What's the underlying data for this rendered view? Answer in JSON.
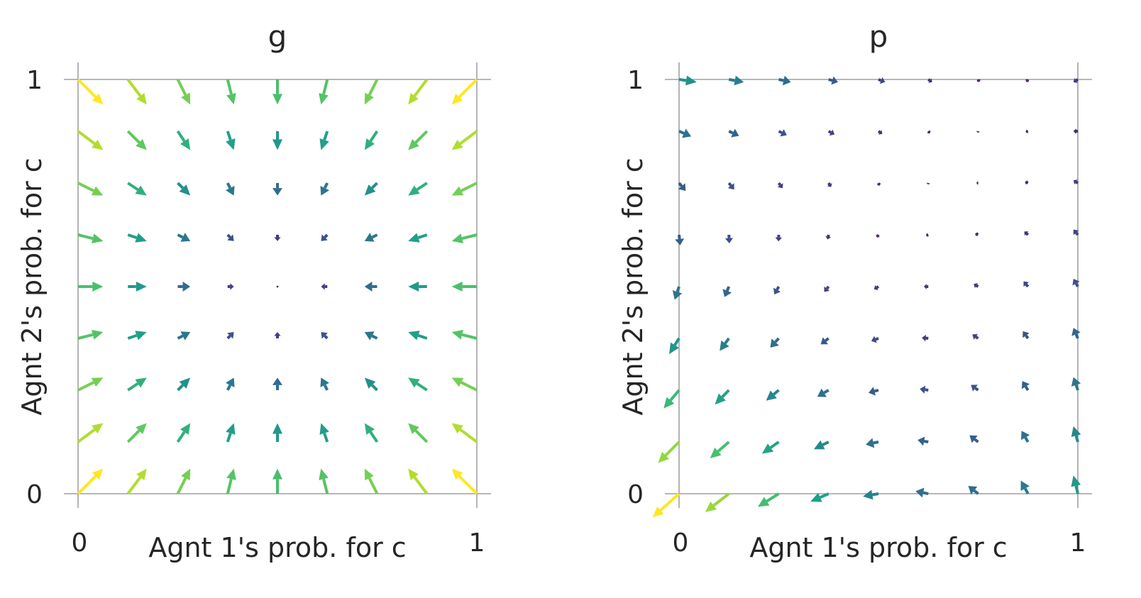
{
  "chart_data": [
    {
      "type": "quiver",
      "title": "g",
      "xlabel": "Agnt 1's prob. for c",
      "ylabel": "Agnt 2's prob. for c",
      "xlim": [
        0,
        1
      ],
      "ylim": [
        0,
        1
      ],
      "xticks": [
        "0",
        "1"
      ],
      "yticks": [
        "0",
        "1"
      ],
      "grid": false,
      "colormap": "viridis",
      "field": "g",
      "grid_points": [
        0.0,
        0.125,
        0.25,
        0.375,
        0.5,
        0.625,
        0.75,
        0.875,
        1.0
      ]
    },
    {
      "type": "quiver",
      "title": "p",
      "xlabel": "Agnt 1's prob. for c",
      "ylabel": "Agnt 2's prob. for c",
      "xlim": [
        0,
        1
      ],
      "ylim": [
        0,
        1
      ],
      "xticks": [
        "0",
        "1"
      ],
      "yticks": [
        "0",
        "1"
      ],
      "grid": false,
      "colormap": "viridis",
      "field": "p",
      "grid_points": [
        0.0,
        0.125,
        0.25,
        0.375,
        0.5,
        0.625,
        0.75,
        0.875,
        1.0
      ]
    }
  ]
}
